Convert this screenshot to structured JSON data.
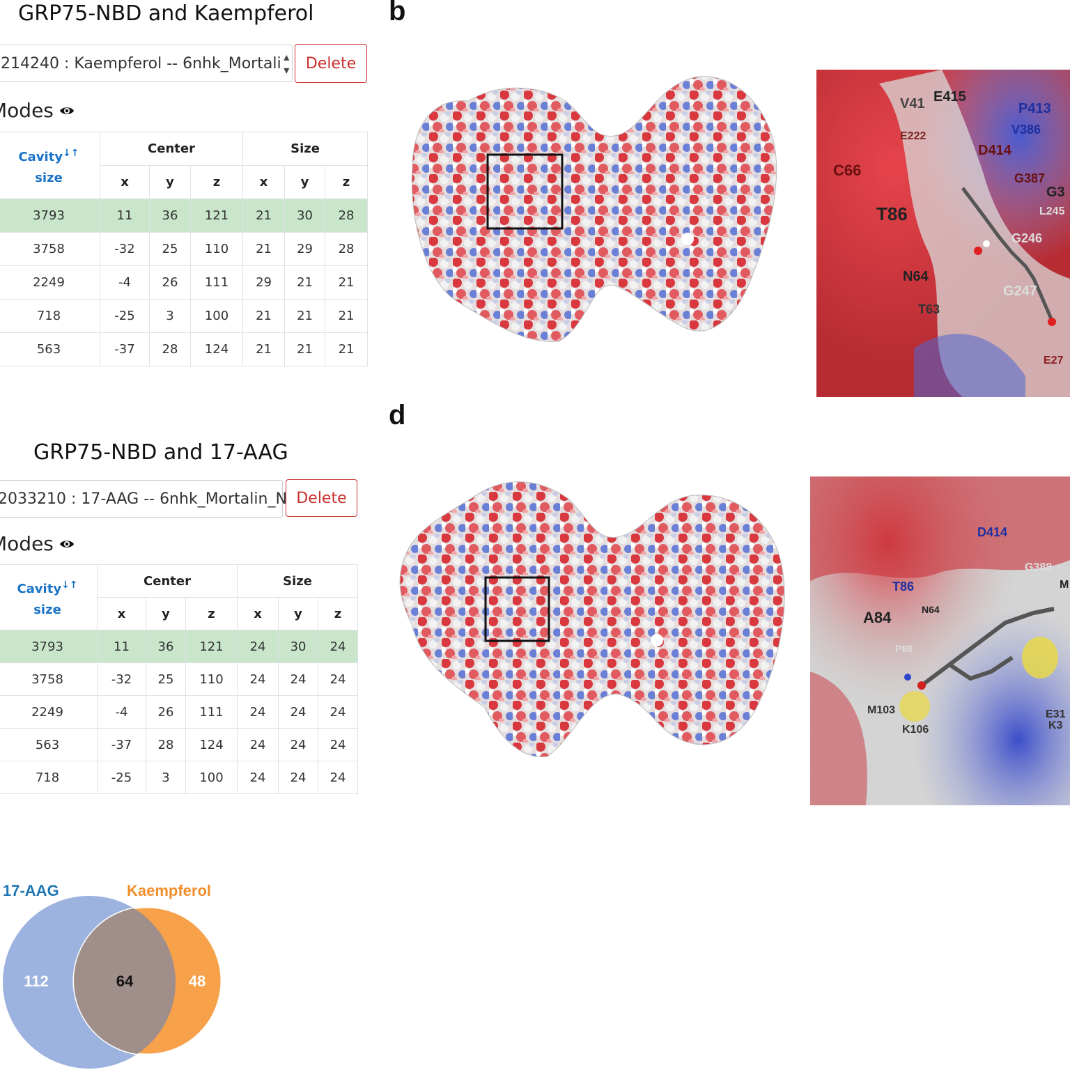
{
  "panel_a": {
    "title": "GRP75-NBD and Kaempferol",
    "select_value": "214240 : Kaempferol -- 6nhk_Mortali",
    "delete_label": "Delete",
    "modes_title": "Modes",
    "headers": {
      "cavity": "Cavity",
      "cavity2": "size",
      "center": "Center",
      "size": "Size",
      "x": "x",
      "y": "y",
      "z": "z"
    },
    "rows": [
      [
        "3793",
        "11",
        "36",
        "121",
        "21",
        "30",
        "28"
      ],
      [
        "3758",
        "-32",
        "25",
        "110",
        "21",
        "29",
        "28"
      ],
      [
        "2249",
        "-4",
        "26",
        "111",
        "29",
        "21",
        "21"
      ],
      [
        "718",
        "-25",
        "3",
        "100",
        "21",
        "21",
        "21"
      ],
      [
        "563",
        "-37",
        "28",
        "124",
        "21",
        "21",
        "21"
      ]
    ]
  },
  "panel_b": {
    "letter": "b",
    "residues": [
      "V41",
      "E415",
      "P413",
      "V386",
      "E222",
      "D414",
      "C66",
      "G387",
      "G3",
      "L245",
      "T86",
      "G246",
      "N64",
      "G247",
      "T63",
      "E27"
    ]
  },
  "panel_c": {
    "title": "GRP75-NBD and 17-AAG",
    "select_value": "2033210 : 17-AAG -- 6nhk_Mortalin_N",
    "delete_label": "Delete",
    "modes_title": "Modes",
    "headers": {
      "cavity": "Cavity",
      "cavity2": "size",
      "center": "Center",
      "size": "Size",
      "x": "x",
      "y": "y",
      "z": "z"
    },
    "rows": [
      [
        "3793",
        "11",
        "36",
        "121",
        "24",
        "30",
        "24"
      ],
      [
        "3758",
        "-32",
        "25",
        "110",
        "24",
        "24",
        "24"
      ],
      [
        "2249",
        "-4",
        "26",
        "111",
        "24",
        "24",
        "24"
      ],
      [
        "563",
        "-37",
        "28",
        "124",
        "24",
        "24",
        "24"
      ],
      [
        "718",
        "-25",
        "3",
        "100",
        "24",
        "24",
        "24"
      ]
    ]
  },
  "panel_d": {
    "letter": "d",
    "residues": [
      "D414",
      "G388",
      "M",
      "T86",
      "A84",
      "N64",
      "P88",
      "M103",
      "K106",
      "E31",
      "K3"
    ]
  },
  "venn": {
    "left_label": "17-AAG",
    "right_label": "Kaempferol",
    "left_only": "112",
    "overlap": "64",
    "right_only": "48",
    "colors": {
      "left": "#9db3df",
      "right": "#f7a24a",
      "overlap": "#a08e8b",
      "left_label": "#1f77b4",
      "right_label": "#f28e2b"
    }
  }
}
